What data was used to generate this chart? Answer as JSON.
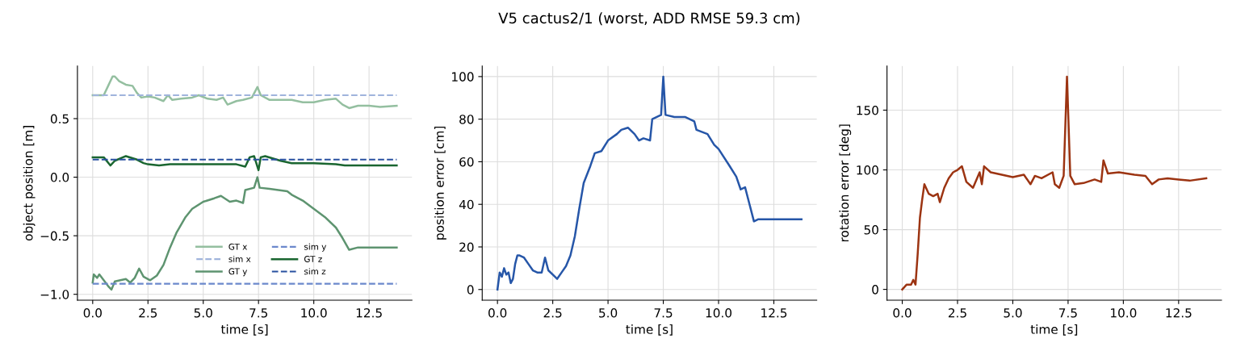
{
  "chart_data": [
    {
      "type": "line",
      "xlabel": "time [s]",
      "ylabel": "object position [m]",
      "xlim": [
        -0.69,
        14.44
      ],
      "ylim": [
        -1.05,
        0.95
      ],
      "xticks": [
        {
          "value": 0,
          "label": "0.0"
        },
        2.5,
        {
          "value": 5,
          "label": "5.0"
        },
        7.5,
        {
          "value": 10,
          "label": "10.0"
        },
        12.5
      ],
      "yticks": [
        {
          "value": -1,
          "label": "−1.0"
        },
        {
          "value": -0.5,
          "label": "−0.5"
        },
        {
          "value": 0,
          "label": "0.0"
        },
        0.5
      ],
      "grid": true,
      "legend": "bottom",
      "series": [
        {
          "name": "GT x",
          "color": "#94bfa0",
          "line_style": "solid",
          "x": [
            0,
            0.5,
            0.7,
            0.9,
            1.0,
            1.2,
            1.5,
            1.8,
            2.0,
            2.2,
            2.5,
            2.8,
            3.2,
            3.4,
            3.6,
            4.0,
            4.5,
            4.8,
            5.2,
            5.6,
            5.9,
            6.1,
            6.5,
            6.8,
            7.2,
            7.45,
            7.6,
            8.0,
            8.5,
            9.0,
            9.5,
            10.0,
            10.5,
            11.0,
            11.3,
            11.6,
            12.0,
            12.5,
            13.0,
            13.75
          ],
          "values": [
            0.7,
            0.7,
            0.78,
            0.86,
            0.86,
            0.82,
            0.79,
            0.78,
            0.72,
            0.68,
            0.69,
            0.68,
            0.65,
            0.7,
            0.66,
            0.67,
            0.68,
            0.7,
            0.67,
            0.66,
            0.68,
            0.62,
            0.65,
            0.66,
            0.68,
            0.77,
            0.7,
            0.66,
            0.66,
            0.66,
            0.64,
            0.64,
            0.66,
            0.67,
            0.62,
            0.59,
            0.61,
            0.61,
            0.6,
            0.61
          ]
        },
        {
          "name": "sim x",
          "color": "#a0b4dc",
          "line_style": "dashed",
          "x": [
            0,
            13.75
          ],
          "values": [
            0.7,
            0.7
          ]
        },
        {
          "name": "GT y",
          "color": "#5e9470",
          "line_style": "solid",
          "x": [
            0,
            0.05,
            0.2,
            0.3,
            0.5,
            0.7,
            0.85,
            1.0,
            1.5,
            1.7,
            1.9,
            2.1,
            2.3,
            2.6,
            2.9,
            3.2,
            3.5,
            3.8,
            4.2,
            4.5,
            5.0,
            5.5,
            5.8,
            6.2,
            6.5,
            6.8,
            6.9,
            7.3,
            7.45,
            7.55,
            8.0,
            8.8,
            9.0,
            9.5,
            10.0,
            10.5,
            11.0,
            11.3,
            11.6,
            12.0,
            12.5,
            13.75
          ],
          "values": [
            -0.9,
            -0.83,
            -0.86,
            -0.83,
            -0.88,
            -0.93,
            -0.96,
            -0.89,
            -0.87,
            -0.9,
            -0.86,
            -0.78,
            -0.85,
            -0.88,
            -0.84,
            -0.75,
            -0.6,
            -0.47,
            -0.34,
            -0.27,
            -0.21,
            -0.18,
            -0.16,
            -0.21,
            -0.2,
            -0.22,
            -0.11,
            -0.09,
            0.0,
            -0.09,
            -0.1,
            -0.12,
            -0.15,
            -0.2,
            -0.27,
            -0.34,
            -0.43,
            -0.52,
            -0.62,
            -0.6,
            -0.6,
            -0.6
          ]
        },
        {
          "name": "sim y",
          "color": "#6b88cc",
          "line_style": "dashed",
          "x": [
            0,
            13.75
          ],
          "values": [
            -0.91,
            -0.91
          ]
        },
        {
          "name": "GT z",
          "color": "#1a6630",
          "line_style": "solid",
          "x": [
            0,
            0.3,
            0.5,
            0.8,
            1.0,
            1.5,
            2.0,
            2.3,
            2.5,
            3.0,
            3.5,
            4.5,
            5.5,
            6.0,
            6.5,
            6.9,
            7.1,
            7.3,
            7.5,
            7.6,
            7.8,
            8.5,
            9.0,
            10.0,
            11.0,
            11.4,
            12.0,
            13.75
          ],
          "values": [
            0.17,
            0.17,
            0.17,
            0.1,
            0.14,
            0.18,
            0.15,
            0.12,
            0.11,
            0.1,
            0.11,
            0.11,
            0.11,
            0.11,
            0.11,
            0.09,
            0.17,
            0.18,
            0.06,
            0.17,
            0.18,
            0.14,
            0.12,
            0.12,
            0.11,
            0.1,
            0.1,
            0.1
          ]
        },
        {
          "name": "sim z",
          "color": "#2850a0",
          "line_style": "dashed",
          "x": [
            0,
            13.75
          ],
          "values": [
            0.15,
            0.15
          ]
        }
      ]
    },
    {
      "type": "line",
      "title": "V5 cactus2/1 (worst, ADD RMSE 59.3 cm)",
      "xlabel": "time [s]",
      "ylabel": "position error [cm]",
      "xlim": [
        -0.69,
        14.44
      ],
      "ylim": [
        -5,
        105
      ],
      "xticks": [
        {
          "value": 0,
          "label": "0.0"
        },
        2.5,
        {
          "value": 5,
          "label": "5.0"
        },
        7.5,
        {
          "value": 10,
          "label": "10.0"
        },
        12.5
      ],
      "yticks": [
        0,
        20,
        40,
        60,
        80,
        100
      ],
      "grid": true,
      "series": [
        {
          "color": "#2656a8",
          "line_style": "solid",
          "x": [
            0,
            0.1,
            0.2,
            0.3,
            0.4,
            0.5,
            0.6,
            0.7,
            0.8,
            0.9,
            1.0,
            1.2,
            1.4,
            1.6,
            1.8,
            2.0,
            2.15,
            2.3,
            2.6,
            2.7,
            2.9,
            3.1,
            3.3,
            3.5,
            3.7,
            3.9,
            4.2,
            4.4,
            4.7,
            5.0,
            5.4,
            5.6,
            5.9,
            6.2,
            6.4,
            6.6,
            6.9,
            7.0,
            7.4,
            7.5,
            7.6,
            8.0,
            8.5,
            8.9,
            9.0,
            9.5,
            9.8,
            10.0,
            10.5,
            10.8,
            11.0,
            11.2,
            11.4,
            11.6,
            11.8,
            12.5,
            13.0,
            13.75
          ],
          "values": [
            0,
            8,
            6,
            10,
            7,
            8,
            3,
            5,
            12,
            16,
            16,
            15,
            12,
            9,
            8,
            8,
            15,
            9,
            6,
            5,
            8,
            11,
            16,
            25,
            38,
            50,
            58,
            64,
            65,
            70,
            73,
            75,
            76,
            73,
            70,
            71,
            70,
            80,
            82,
            100,
            82,
            81,
            81,
            79,
            75,
            73,
            68,
            66,
            58,
            53,
            47,
            48,
            40,
            32,
            33,
            33,
            33,
            33
          ]
        }
      ]
    },
    {
      "type": "line",
      "xlabel": "time [s]",
      "ylabel": "rotation error [deg]",
      "xlim": [
        -0.69,
        14.44
      ],
      "ylim": [
        -9,
        187
      ],
      "xticks": [
        {
          "value": 0,
          "label": "0.0"
        },
        2.5,
        {
          "value": 5,
          "label": "5.0"
        },
        7.5,
        {
          "value": 10,
          "label": "10.0"
        },
        12.5
      ],
      "yticks": [
        0,
        50,
        100,
        150
      ],
      "grid": true,
      "series": [
        {
          "color": "#9c3412",
          "line_style": "solid",
          "x": [
            0,
            0.2,
            0.4,
            0.5,
            0.6,
            0.7,
            0.8,
            0.9,
            1.0,
            1.2,
            1.4,
            1.6,
            1.7,
            1.9,
            2.1,
            2.3,
            2.5,
            2.7,
            2.9,
            3.2,
            3.5,
            3.6,
            3.7,
            4.0,
            4.5,
            5.0,
            5.5,
            5.8,
            6.0,
            6.3,
            6.8,
            6.9,
            7.1,
            7.3,
            7.45,
            7.6,
            7.8,
            8.2,
            8.7,
            9.0,
            9.1,
            9.3,
            9.8,
            10.5,
            11.0,
            11.3,
            11.6,
            12.0,
            12.5,
            13.0,
            13.75
          ],
          "values": [
            0,
            4,
            4,
            8,
            4,
            30,
            60,
            75,
            88,
            80,
            78,
            80,
            73,
            85,
            93,
            98,
            100,
            103,
            90,
            85,
            98,
            88,
            103,
            98,
            96,
            94,
            96,
            88,
            95,
            93,
            98,
            88,
            85,
            95,
            178,
            95,
            88,
            89,
            92,
            90,
            108,
            97,
            98,
            96,
            95,
            88,
            92,
            93,
            92,
            91,
            93
          ]
        }
      ]
    }
  ]
}
